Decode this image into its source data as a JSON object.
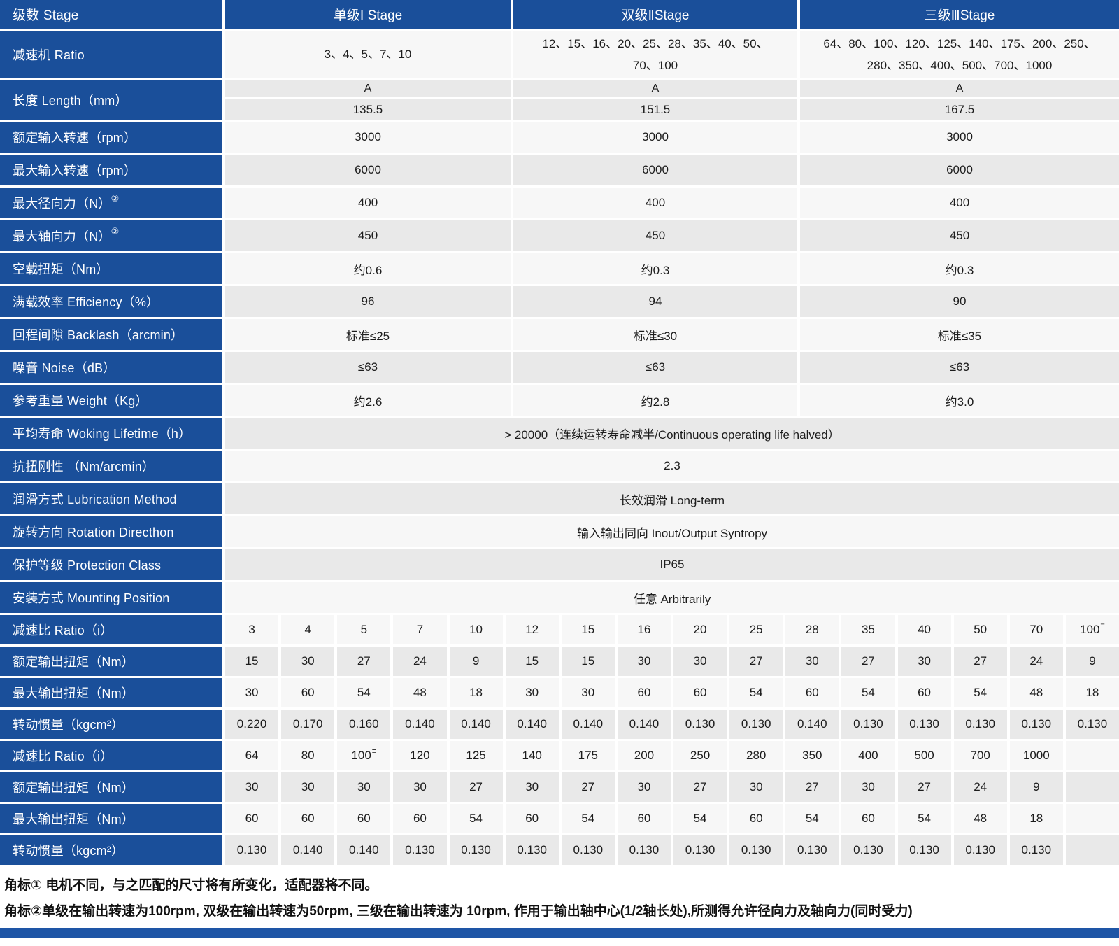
{
  "header": {
    "stage_label": "级数 Stage",
    "columns": [
      "单级Ⅰ Stage",
      "双级ⅡStage",
      "三级ⅢStage"
    ]
  },
  "spec_rows": [
    {
      "type": "values",
      "shade": "light",
      "label": "减速机 Ratio",
      "big": true,
      "values": [
        "3、4、5、7、10",
        "12、15、16、20、25、28、35、40、50、70、100",
        "64、80、100、120、125、140、175、200、250、280、350、400、500、700、1000"
      ]
    },
    {
      "type": "dual",
      "shade": "dark",
      "label": "长度 Length（mm）",
      "sub1": [
        "A",
        "A",
        "A"
      ],
      "sub2": [
        "135.5",
        "151.5",
        "167.5"
      ]
    },
    {
      "type": "values",
      "shade": "light",
      "label": "额定输入转速（rpm）",
      "values": [
        "3000",
        "3000",
        "3000"
      ]
    },
    {
      "type": "values",
      "shade": "dark",
      "label": "最大输入转速（rpm）",
      "values": [
        "6000",
        "6000",
        "6000"
      ]
    },
    {
      "type": "values",
      "shade": "light",
      "label": "最大径向力（N）",
      "label_sup": "②",
      "values": [
        "400",
        "400",
        "400"
      ]
    },
    {
      "type": "values",
      "shade": "dark",
      "label": "最大轴向力（N）",
      "label_sup": "②",
      "values": [
        "450",
        "450",
        "450"
      ]
    },
    {
      "type": "values",
      "shade": "light",
      "label": "空载扭矩（Nm）",
      "values": [
        "约0.6",
        "约0.3",
        "约0.3"
      ]
    },
    {
      "type": "values",
      "shade": "dark",
      "label": "满载效率 Efficiency（%）",
      "values": [
        "96",
        "94",
        "90"
      ]
    },
    {
      "type": "values",
      "shade": "light",
      "label": "回程间隙 Backlash（arcmin）",
      "values": [
        "标准≤25",
        "标准≤30",
        "标准≤35"
      ]
    },
    {
      "type": "values",
      "shade": "dark",
      "label": "噪音 Noise（dB）",
      "values": [
        "≤63",
        "≤63",
        "≤63"
      ]
    },
    {
      "type": "values",
      "shade": "light",
      "label": "参考重量 Weight（Kg）",
      "values": [
        "约2.6",
        "约2.8",
        "约3.0"
      ]
    },
    {
      "type": "span",
      "shade": "dark",
      "label": "平均寿命 Woking Lifetime（h）",
      "value": "> 20000（连续运转寿命减半/Continuous operating life halved）"
    },
    {
      "type": "span",
      "shade": "light",
      "label": "抗扭刚性 （Nm/arcmin）",
      "value": "2.3"
    },
    {
      "type": "span",
      "shade": "dark",
      "label": "润滑方式 Lubrication Method",
      "value": "长效润滑 Long-term"
    },
    {
      "type": "span",
      "shade": "light",
      "label": "旋转方向 Rotation Directhon",
      "value": "输入输出同向 Inout/Output Syntropy"
    },
    {
      "type": "span",
      "shade": "dark",
      "label": "保护等级 Protection Class",
      "value": "IP65"
    },
    {
      "type": "span",
      "shade": "light",
      "label": "安装方式 Mounting Position",
      "value": "任意 Arbitrarily"
    }
  ],
  "ratio_groups": [
    {
      "rows": [
        {
          "shade": "light",
          "label": "减速比 Ratio（i）",
          "values": [
            "3",
            "4",
            "5",
            "7",
            "10",
            "12",
            "15",
            "16",
            "20",
            "25",
            "28",
            "35",
            "40",
            "50",
            "70",
            "100"
          ],
          "sup": {
            "15": "="
          }
        },
        {
          "shade": "dark",
          "label": "额定输出扭矩（Nm）",
          "values": [
            "15",
            "30",
            "27",
            "24",
            "9",
            "15",
            "15",
            "30",
            "30",
            "27",
            "30",
            "27",
            "30",
            "27",
            "24",
            "9"
          ]
        },
        {
          "shade": "light",
          "label": "最大输出扭矩（Nm）",
          "values": [
            "30",
            "60",
            "54",
            "48",
            "18",
            "30",
            "30",
            "60",
            "60",
            "54",
            "60",
            "54",
            "60",
            "54",
            "48",
            "18"
          ]
        },
        {
          "shade": "dark",
          "label": "转动惯量（kgcm²）",
          "values": [
            "0.220",
            "0.170",
            "0.160",
            "0.140",
            "0.140",
            "0.140",
            "0.140",
            "0.140",
            "0.130",
            "0.130",
            "0.140",
            "0.130",
            "0.130",
            "0.130",
            "0.130",
            "0.130"
          ]
        }
      ]
    },
    {
      "rows": [
        {
          "shade": "light",
          "label": "减速比 Ratio（i）",
          "values": [
            "64",
            "80",
            "100",
            "120",
            "125",
            "140",
            "175",
            "200",
            "250",
            "280",
            "350",
            "400",
            "500",
            "700",
            "1000",
            ""
          ],
          "sup": {
            "2": "≡"
          }
        },
        {
          "shade": "dark",
          "label": "额定输出扭矩（Nm）",
          "values": [
            "30",
            "30",
            "30",
            "30",
            "27",
            "30",
            "27",
            "30",
            "27",
            "30",
            "27",
            "30",
            "27",
            "24",
            "9",
            ""
          ]
        },
        {
          "shade": "light",
          "label": "最大输出扭矩（Nm）",
          "values": [
            "60",
            "60",
            "60",
            "60",
            "54",
            "60",
            "54",
            "60",
            "54",
            "60",
            "54",
            "60",
            "54",
            "48",
            "18",
            ""
          ]
        },
        {
          "shade": "dark",
          "label": "转动惯量（kgcm²）",
          "values": [
            "0.130",
            "0.140",
            "0.140",
            "0.130",
            "0.130",
            "0.130",
            "0.130",
            "0.130",
            "0.130",
            "0.130",
            "0.130",
            "0.130",
            "0.130",
            "0.130",
            "0.130",
            ""
          ]
        }
      ]
    }
  ],
  "footnotes": [
    "角标① 电机不同，与之匹配的尺寸将有所变化，适配器将不同。",
    "角标②单级在输出转速为100rpm, 双级在输出转速为50rpm, 三级在输出转速为 10rpm, 作用于输出轴中心(1/2轴长处),所测得允许径向力及轴向力(同时受力)"
  ],
  "colors": {
    "primary_blue": "#1a4f9a",
    "bottom_bar_blue": "#1e55a6",
    "row_light": "#f7f7f7",
    "row_dark": "#e9e9e9"
  }
}
